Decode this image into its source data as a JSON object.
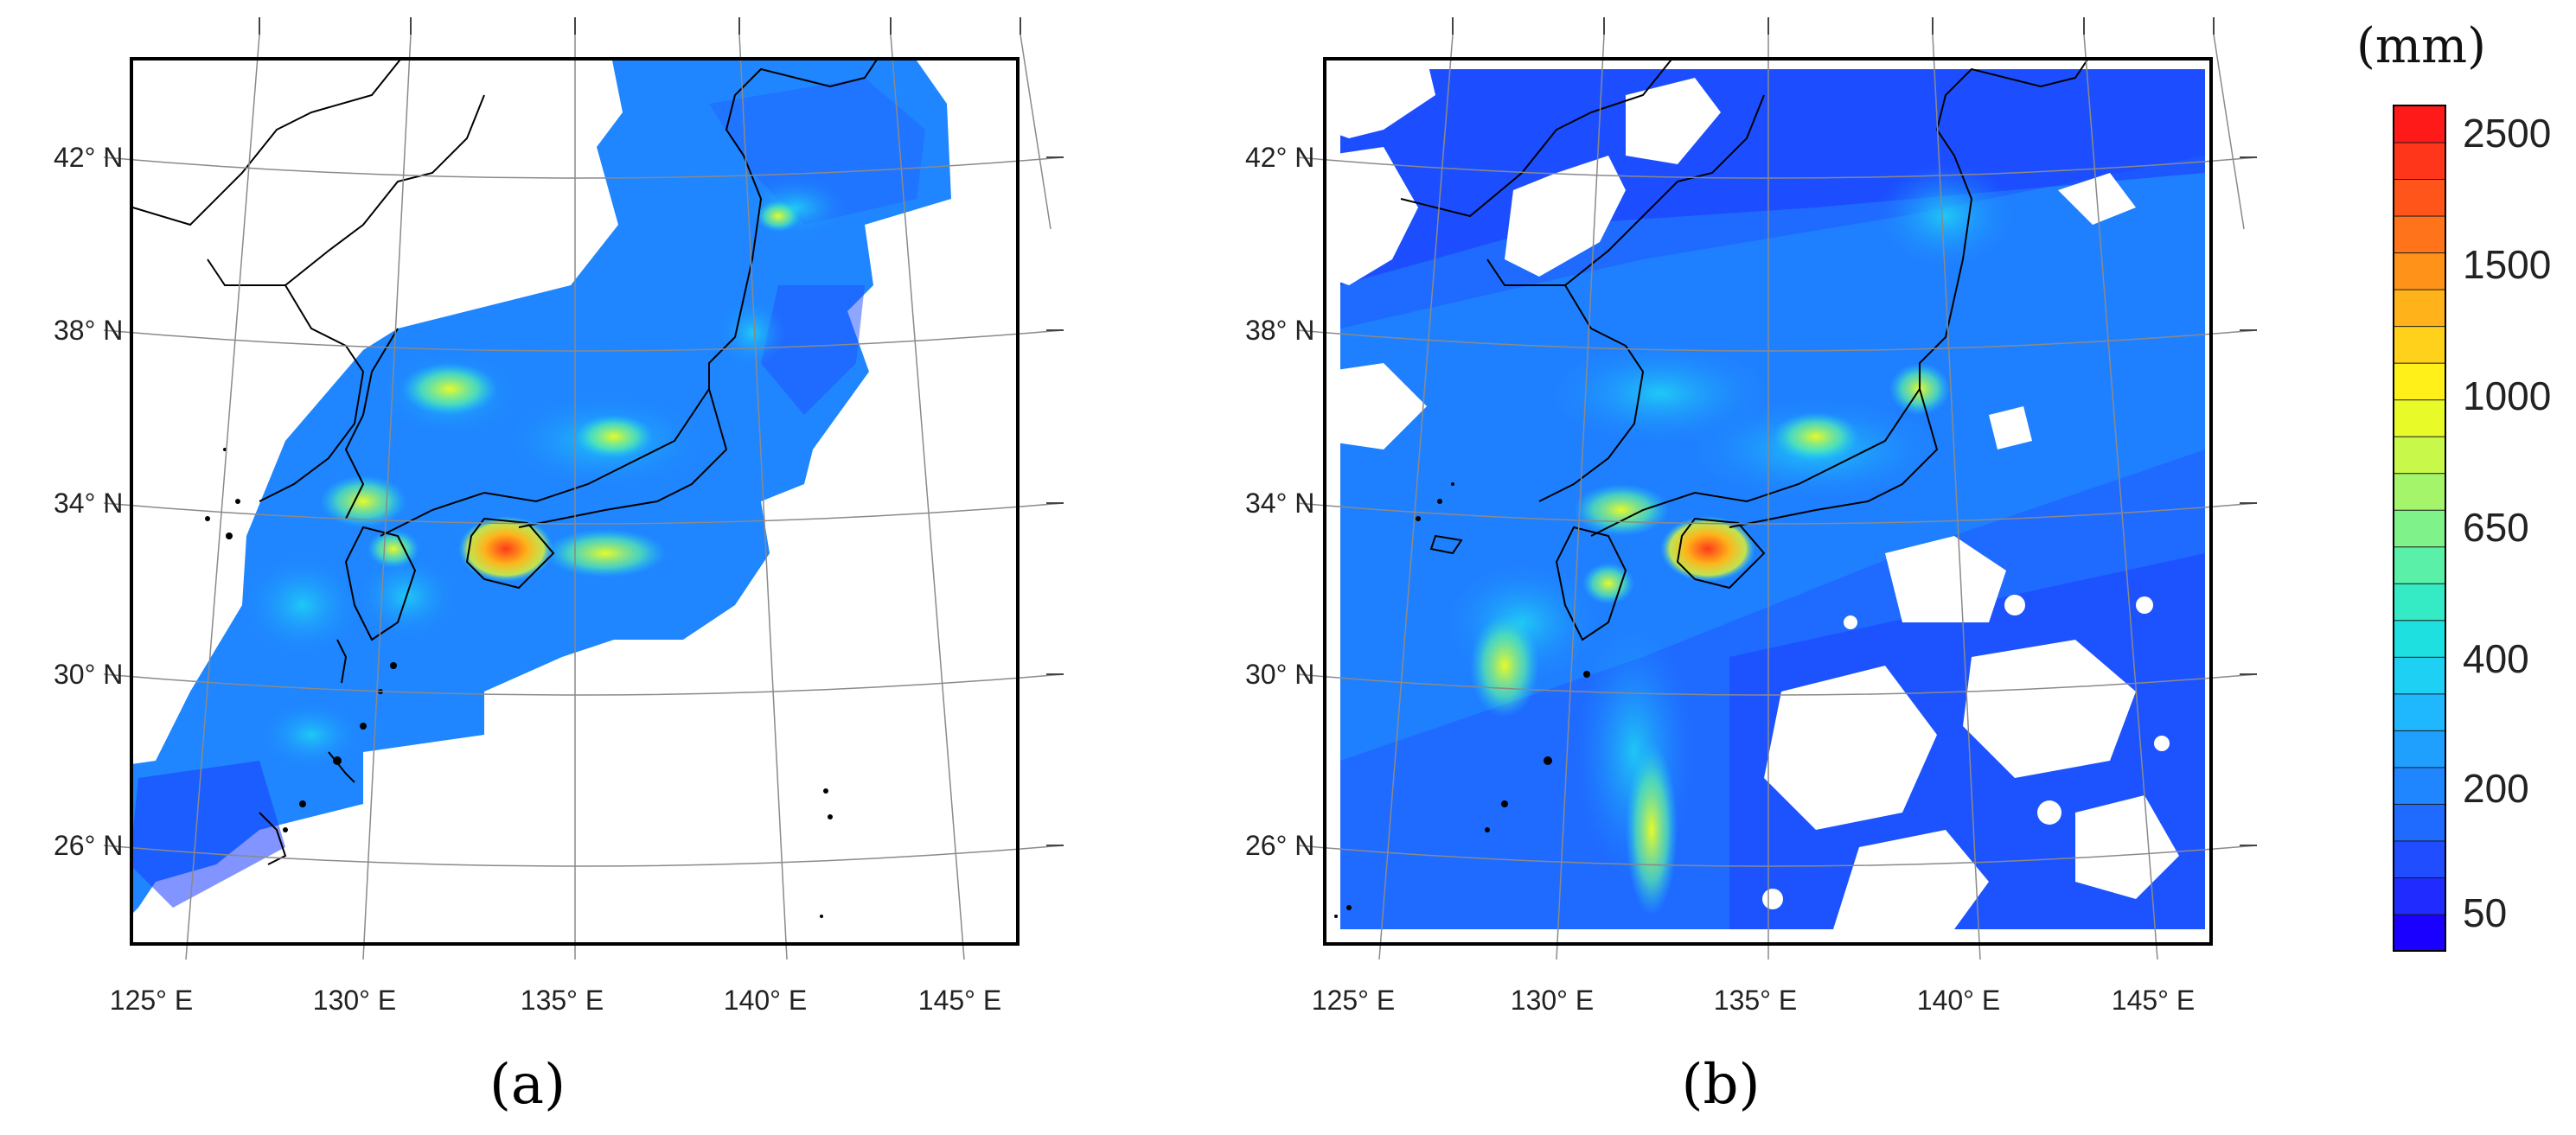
{
  "panels": [
    {
      "id": "a",
      "label": "(a)",
      "coverage": "radar composite over Japan (land and near-coast)"
    },
    {
      "id": "b",
      "label": "(b)",
      "coverage": "full rectangular domain with scattered no-data gaps"
    }
  ],
  "lat_labels": [
    "42° N",
    "38° N",
    "34° N",
    "30° N",
    "26° N"
  ],
  "lon_labels": [
    "125° E",
    "130° E",
    "135° E",
    "140° E",
    "145° E"
  ],
  "colorbar": {
    "unit": "(mm)",
    "tick_labels": [
      "2500",
      "1500",
      "1000",
      "650",
      "400",
      "200",
      "50"
    ],
    "colors": [
      "#1a00ff",
      "#1f2bff",
      "#1f4dff",
      "#1f6aff",
      "#1f86ff",
      "#1fa0ff",
      "#1fb8ff",
      "#1fd0f5",
      "#1fe0e0",
      "#35ebc6",
      "#5af0a8",
      "#7ff28a",
      "#a4f56a",
      "#c8f84a",
      "#e8fa28",
      "#fff01a",
      "#ffd11a",
      "#ffb21a",
      "#ff931a",
      "#ff741a",
      "#ff551a",
      "#ff361a",
      "#ff1a1a"
    ]
  },
  "colors": {
    "ocean_low": "#1a3cff",
    "ocean_mid": "#1f86ff",
    "high": "#ff3a1a",
    "mid_high": "#ffd21a",
    "coast": "#000000"
  }
}
